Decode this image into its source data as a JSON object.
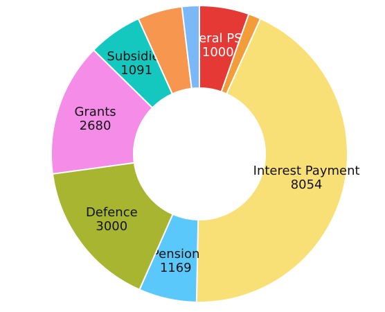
{
  "chart_data": {
    "type": "donut",
    "categories": [
      "Federal PSDP",
      null,
      "Interest Payment",
      "Pension",
      "Defence",
      "Grants",
      "Subsidies",
      null,
      null
    ],
    "values": [
      1000,
      250,
      8054,
      1169,
      3000,
      2680,
      1091,
      900,
      350
    ],
    "colors": [
      "#e53935",
      "#f39c3a",
      "#f9e076",
      "#5ac8fa",
      "#a8b530",
      "#f48ce8",
      "#14c8c0",
      "#f7964f",
      "#7ab8f7"
    ],
    "label_colors": [
      "#ffffff",
      "#111111",
      "#111111",
      "#111111",
      "#111111",
      "#111111",
      "#111111",
      "#111111",
      "#111111"
    ]
  }
}
